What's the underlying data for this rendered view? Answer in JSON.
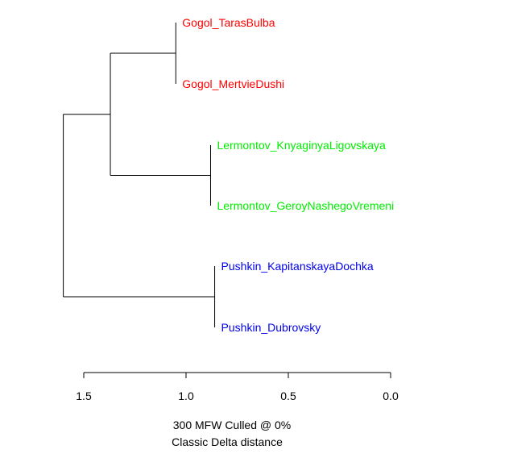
{
  "chart_data": {
    "type": "dendrogram",
    "title": "",
    "xlabel": "300 MFW  Culled @ 0%",
    "xlabel2": "Classic Delta distance",
    "xlim": [
      1.6,
      0.0
    ],
    "x_ticks": [
      1.5,
      1.0,
      0.5,
      0.0
    ],
    "x_tick_labels": [
      "1.5",
      "1.0",
      "0.5",
      "0.0"
    ],
    "leaves": [
      {
        "label": "Gogol_TarasBulba",
        "color": "#ff0000",
        "height": 1.05
      },
      {
        "label": "Gogol_MertvieDushi",
        "color": "#ff0000",
        "height": 1.05
      },
      {
        "label": "Lermontov_KnyaginyaLigovskaya",
        "color": "#00ee00",
        "height": 0.88
      },
      {
        "label": "Lermontov_GeroyNashegoVremeni",
        "color": "#00ee00",
        "height": 0.88
      },
      {
        "label": "Pushkin_KapitanskayaDochka",
        "color": "#0000ee",
        "height": 0.86
      },
      {
        "label": "Pushkin_Dubrovsky",
        "color": "#0000ee",
        "height": 0.86
      }
    ],
    "merges": [
      {
        "id": "gogol",
        "children": [
          "leaf:0",
          "leaf:1"
        ],
        "height": 1.05
      },
      {
        "id": "lermontov",
        "children": [
          "leaf:2",
          "leaf:3"
        ],
        "height": 0.88
      },
      {
        "id": "pushkin",
        "children": [
          "leaf:4",
          "leaf:5"
        ],
        "height": 0.86
      },
      {
        "id": "gogol_lermontov",
        "children": [
          "node:gogol",
          "node:lermontov"
        ],
        "height": 1.37
      },
      {
        "id": "root",
        "children": [
          "node:gogol_lermontov",
          "node:pushkin"
        ],
        "height": 1.6
      }
    ]
  }
}
